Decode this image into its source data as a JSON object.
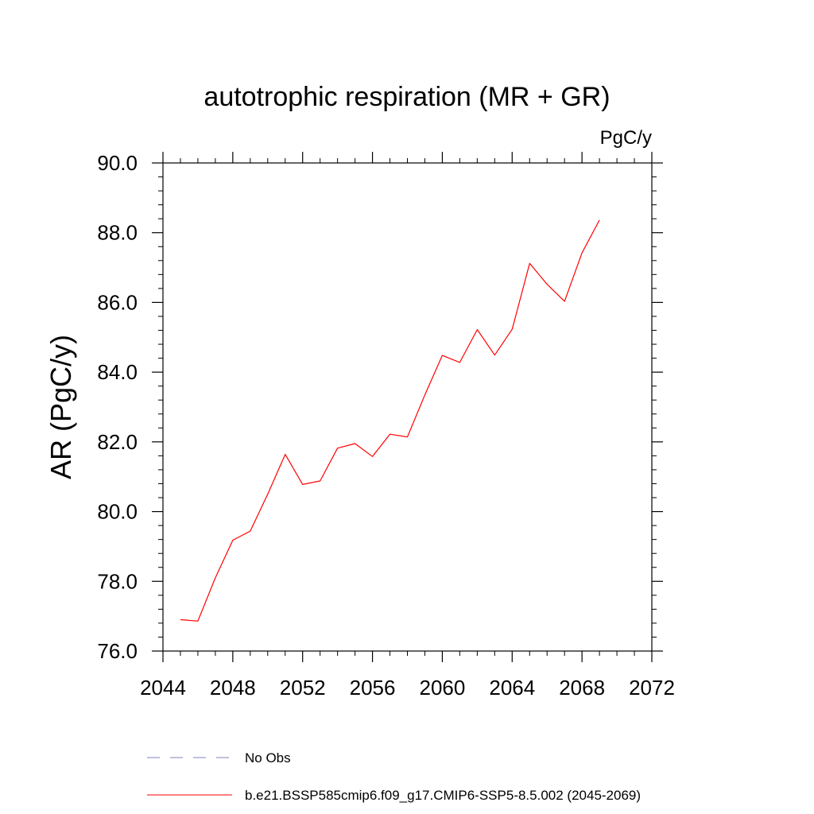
{
  "chart_data": {
    "type": "line",
    "title": "autotrophic respiration (MR + GR)",
    "units": "PgC/y",
    "xlabel": "",
    "ylabel": "AR  (PgC/y)",
    "xlim": [
      2044,
      2072
    ],
    "ylim": [
      76,
      90
    ],
    "xticks": [
      2044,
      2048,
      2052,
      2056,
      2060,
      2064,
      2068,
      2072
    ],
    "xtick_labels": [
      "2044",
      "2048",
      "2052",
      "2056",
      "2060",
      "2064",
      "2068",
      "2072"
    ],
    "yticks": [
      76,
      78,
      80,
      82,
      84,
      86,
      88,
      90
    ],
    "ytick_labels": [
      "76.0",
      "78.0",
      "80.0",
      "82.0",
      "84.0",
      "86.0",
      "88.0",
      "90.0"
    ],
    "grid": false,
    "legend_position": "bottom",
    "series": [
      {
        "name": "b.e21.BSSP585cmip6.f09_g17.CMIP6-SSP5-8.5.002 (2045-2069)",
        "color": "#ff0000",
        "dash": "solid",
        "x": [
          2045,
          2046,
          2047,
          2048,
          2049,
          2050,
          2051,
          2052,
          2053,
          2054,
          2055,
          2056,
          2057,
          2058,
          2059,
          2060,
          2061,
          2062,
          2063,
          2064,
          2065,
          2066,
          2067,
          2068,
          2069
        ],
        "y": [
          76.9,
          76.86,
          78.1,
          79.18,
          79.44,
          80.5,
          81.64,
          80.78,
          80.88,
          81.82,
          81.95,
          81.58,
          82.22,
          82.14,
          83.35,
          84.48,
          84.28,
          85.22,
          84.49,
          85.23,
          87.12,
          86.52,
          86.03,
          87.42,
          88.36
        ]
      }
    ],
    "legend": [
      {
        "label": "No Obs",
        "color": "#8080c0",
        "dash": "dashed"
      },
      {
        "label": "b.e21.BSSP585cmip6.f09_g17.CMIP6-SSP5-8.5.002 (2045-2069)",
        "color": "#ff0000",
        "dash": "solid"
      }
    ]
  }
}
